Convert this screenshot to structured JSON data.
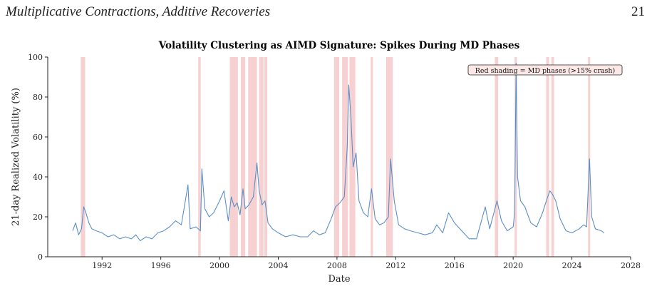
{
  "page": {
    "running_title": "Multiplicative Contractions, Additive Recoveries",
    "page_number": "21"
  },
  "chart_data": {
    "type": "line",
    "title": "Volatility Clustering as AIMD Signature: Spikes During MD Phases",
    "xlabel": "Date",
    "ylabel": "21-day Realized Volatility (%)",
    "xlim": [
      1988.3,
      2028
    ],
    "ylim": [
      0,
      100
    ],
    "x_ticks": [
      1992,
      1996,
      2000,
      2004,
      2008,
      2012,
      2016,
      2020,
      2024,
      2028
    ],
    "y_ticks": [
      0,
      20,
      40,
      60,
      80,
      100
    ],
    "grid": false,
    "line_color": "#5b8fc7",
    "shade_color": "#f2b8b8",
    "annotation": "Red shading = MD phases (>15% crash)",
    "annotation_position": "top-right",
    "md_phases": [
      [
        1990.55,
        1990.85
      ],
      [
        1998.55,
        1998.72
      ],
      [
        2000.7,
        2001.25
      ],
      [
        2001.45,
        2001.75
      ],
      [
        2001.95,
        2002.55
      ],
      [
        2002.7,
        2003.0
      ],
      [
        2003.05,
        2003.25
      ],
      [
        2007.8,
        2008.15
      ],
      [
        2008.35,
        2008.75
      ],
      [
        2008.85,
        2009.25
      ],
      [
        2010.3,
        2010.45
      ],
      [
        2011.35,
        2011.8
      ],
      [
        2018.75,
        2018.98
      ],
      [
        2020.1,
        2020.25
      ],
      [
        2022.25,
        2022.45
      ],
      [
        2022.6,
        2022.78
      ],
      [
        2025.1,
        2025.25
      ]
    ],
    "series": [
      {
        "x": [
          1990.0,
          1990.2,
          1990.4,
          1990.6,
          1990.75,
          1990.9,
          1991.1,
          1991.3,
          1991.6,
          1992.0,
          1992.4,
          1992.8,
          1993.2,
          1993.6,
          1994.0,
          1994.3,
          1994.6,
          1995.0,
          1995.4,
          1995.8,
          1996.2,
          1996.6,
          1997.0,
          1997.4,
          1997.85,
          1998.0,
          1998.4,
          1998.7,
          1998.8,
          1999.0,
          1999.3,
          1999.6,
          2000.0,
          2000.3,
          2000.6,
          2000.8,
          2001.0,
          2001.2,
          2001.4,
          2001.6,
          2001.75,
          2002.0,
          2002.3,
          2002.55,
          2002.7,
          2002.9,
          2003.1,
          2003.3,
          2003.6,
          2004.0,
          2004.5,
          2005.0,
          2005.5,
          2006.0,
          2006.4,
          2006.8,
          2007.2,
          2007.6,
          2007.9,
          2008.2,
          2008.5,
          2008.7,
          2008.8,
          2008.95,
          2009.1,
          2009.3,
          2009.5,
          2009.8,
          2010.1,
          2010.35,
          2010.6,
          2010.9,
          2011.2,
          2011.5,
          2011.65,
          2011.9,
          2012.2,
          2012.6,
          2013.0,
          2013.5,
          2014.0,
          2014.5,
          2014.8,
          2015.2,
          2015.6,
          2016.0,
          2016.5,
          2017.0,
          2017.5,
          2018.1,
          2018.4,
          2018.9,
          2019.2,
          2019.6,
          2020.0,
          2020.1,
          2020.2,
          2020.3,
          2020.5,
          2020.8,
          2021.2,
          2021.6,
          2022.0,
          2022.3,
          2022.5,
          2022.7,
          2022.9,
          2023.2,
          2023.6,
          2024.0,
          2024.5,
          2024.8,
          2025.0,
          2025.2,
          2025.35,
          2025.6,
          2026.0,
          2026.2
        ],
        "y": [
          13,
          17,
          11,
          14,
          25,
          22,
          17,
          14,
          13,
          12,
          10,
          11,
          9,
          10,
          9,
          11,
          8,
          10,
          9,
          12,
          13,
          15,
          18,
          16,
          36,
          14,
          15,
          13,
          44,
          24,
          20,
          22,
          28,
          33,
          18,
          30,
          25,
          27,
          21,
          34,
          24,
          26,
          30,
          47,
          33,
          26,
          28,
          17,
          14,
          12,
          10,
          11,
          10,
          10,
          13,
          11,
          12,
          19,
          25,
          27,
          30,
          55,
          86,
          70,
          45,
          52,
          28,
          22,
          20,
          34,
          19,
          16,
          17,
          20,
          49,
          28,
          16,
          14,
          13,
          12,
          11,
          12,
          16,
          12,
          22,
          17,
          13,
          9,
          9,
          25,
          14,
          28,
          18,
          13,
          15,
          22,
          97,
          40,
          28,
          25,
          17,
          15,
          22,
          29,
          33,
          31,
          28,
          19,
          13,
          12,
          14,
          16,
          15,
          49,
          20,
          14,
          13,
          12
        ]
      }
    ]
  }
}
